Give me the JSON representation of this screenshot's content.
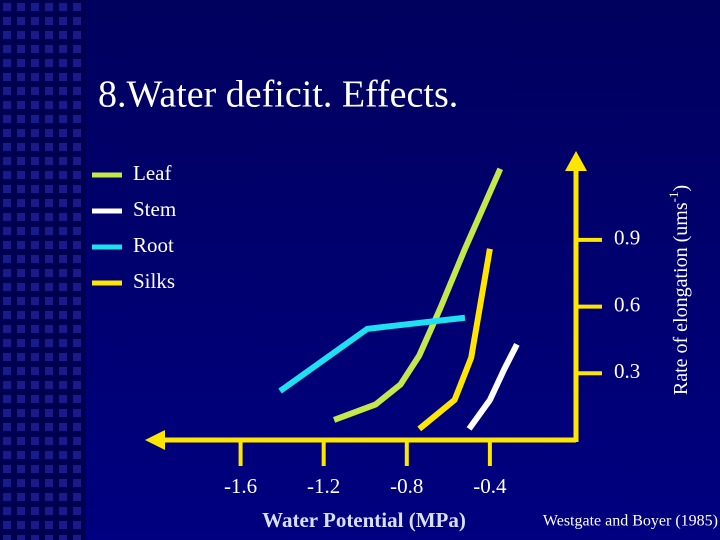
{
  "chart_data": {
    "type": "line",
    "title": "8.Water deficit. Effects.",
    "xlabel": "Water Potential (MPa)",
    "ylabel": {
      "text": "Rate of elongation (ums",
      "sup": "-1",
      "end": ")"
    },
    "source": "Westgate and Boyer (1985)",
    "xlim": [
      -2.06,
      0
    ],
    "xticks": [
      -1.6,
      -1.2,
      -0.8,
      -0.4
    ],
    "ylim": [
      0,
      1.3
    ],
    "yticks": [
      0.3,
      0.6,
      0.9
    ],
    "axis_color": "#ffe600",
    "series": [
      {
        "name": "Leaf",
        "color": "#c4e84a",
        "x": [
          -1.15,
          -0.95,
          -0.83,
          -0.74,
          -0.64,
          -0.52,
          -0.35
        ],
        "values": [
          0.09,
          0.16,
          0.25,
          0.38,
          0.59,
          0.86,
          1.22
        ]
      },
      {
        "name": "Stem",
        "color": "#ffffff",
        "x": [
          -0.5,
          -0.4,
          -0.33,
          -0.27
        ],
        "values": [
          0.05,
          0.18,
          0.32,
          0.43
        ]
      },
      {
        "name": "Root",
        "color": "#1ee0f0",
        "x": [
          -1.41,
          -0.99,
          -0.52
        ],
        "values": [
          0.22,
          0.5,
          0.55
        ]
      },
      {
        "name": "Silks",
        "color": "#ffe600",
        "x": [
          -0.74,
          -0.57,
          -0.49,
          -0.4
        ],
        "values": [
          0.05,
          0.18,
          0.37,
          0.86
        ]
      }
    ]
  }
}
